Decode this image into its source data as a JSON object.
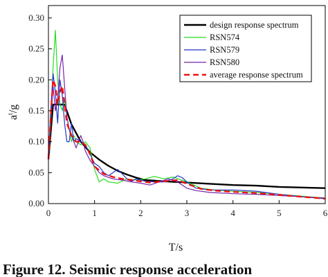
{
  "chart_data": {
    "type": "line",
    "xlabel": "T/s",
    "ylabel": "a / g",
    "ylabel_base": "a",
    "ylabel_sup": "t",
    "ylabel_tail": "/g",
    "xlim": [
      0,
      6
    ],
    "ylim": [
      0,
      0.32
    ],
    "xticks": [
      0,
      1,
      2,
      3,
      4,
      5,
      6
    ],
    "yticks": [
      0.0,
      0.05,
      0.1,
      0.15,
      0.2,
      0.25,
      0.3
    ],
    "ytick_labels": [
      "0.00",
      "0.05",
      "0.10",
      "0.15",
      "0.20",
      "0.25",
      "0.30"
    ],
    "grid": false,
    "legend_position": "top-right",
    "series": [
      {
        "name": "design response spectrum",
        "color": "#000000",
        "dash": "solid",
        "width": 2.4,
        "x": [
          0,
          0.1,
          0.35,
          0.5,
          0.7,
          0.9,
          1.1,
          1.3,
          1.5,
          1.7,
          1.9,
          2.1,
          2.5,
          3,
          3.5,
          4,
          4.5,
          5,
          5.5,
          6
        ],
        "y": [
          0.072,
          0.16,
          0.16,
          0.128,
          0.1,
          0.083,
          0.071,
          0.061,
          0.053,
          0.047,
          0.042,
          0.038,
          0.036,
          0.034,
          0.032,
          0.03,
          0.029,
          0.027,
          0.026,
          0.025
        ]
      },
      {
        "name": "RSN574",
        "color": "#22dd22",
        "dash": "solid",
        "width": 1.2,
        "x": [
          0,
          0.05,
          0.1,
          0.15,
          0.2,
          0.25,
          0.3,
          0.35,
          0.4,
          0.45,
          0.5,
          0.55,
          0.6,
          0.7,
          0.8,
          0.9,
          1.0,
          1.1,
          1.2,
          1.3,
          1.5,
          1.7,
          1.9,
          2.1,
          2.3,
          2.5,
          2.7,
          3.0,
          3.3,
          3.6,
          4.0,
          4.5,
          5.0,
          5.5,
          6.0
        ],
        "y": [
          0.075,
          0.13,
          0.22,
          0.28,
          0.2,
          0.16,
          0.15,
          0.17,
          0.14,
          0.12,
          0.1,
          0.11,
          0.1,
          0.095,
          0.1,
          0.09,
          0.055,
          0.035,
          0.04,
          0.035,
          0.033,
          0.04,
          0.038,
          0.04,
          0.044,
          0.04,
          0.043,
          0.035,
          0.025,
          0.022,
          0.02,
          0.018,
          0.015,
          0.012,
          0.009
        ]
      },
      {
        "name": "RSN579",
        "color": "#2233cc",
        "dash": "solid",
        "width": 1.2,
        "x": [
          0,
          0.05,
          0.1,
          0.15,
          0.2,
          0.25,
          0.3,
          0.35,
          0.4,
          0.45,
          0.5,
          0.55,
          0.6,
          0.7,
          0.8,
          0.9,
          1.0,
          1.1,
          1.2,
          1.3,
          1.4,
          1.5,
          1.6,
          1.7,
          1.8,
          1.9,
          2.1,
          2.3,
          2.5,
          2.7,
          2.8,
          2.9,
          3.0,
          3.2,
          3.5,
          4.0,
          4.5,
          5.0,
          5.5,
          6.0
        ],
        "y": [
          0.07,
          0.15,
          0.21,
          0.18,
          0.13,
          0.2,
          0.175,
          0.13,
          0.1,
          0.1,
          0.13,
          0.1,
          0.105,
          0.1,
          0.095,
          0.08,
          0.065,
          0.06,
          0.05,
          0.045,
          0.05,
          0.055,
          0.048,
          0.04,
          0.036,
          0.04,
          0.036,
          0.035,
          0.035,
          0.04,
          0.045,
          0.042,
          0.035,
          0.025,
          0.022,
          0.022,
          0.02,
          0.015,
          0.011,
          0.008
        ]
      },
      {
        "name": "RSN580",
        "color": "#7722aa",
        "dash": "solid",
        "width": 1.2,
        "x": [
          0,
          0.05,
          0.1,
          0.15,
          0.2,
          0.25,
          0.3,
          0.35,
          0.4,
          0.45,
          0.5,
          0.55,
          0.6,
          0.65,
          0.7,
          0.75,
          0.8,
          0.9,
          1.0,
          1.1,
          1.2,
          1.4,
          1.6,
          1.8,
          2.0,
          2.2,
          2.4,
          2.6,
          2.8,
          3.0,
          3.2,
          3.5,
          4.0,
          4.5,
          5.0,
          5.5,
          6.0
        ],
        "y": [
          0.075,
          0.14,
          0.19,
          0.15,
          0.17,
          0.22,
          0.24,
          0.19,
          0.14,
          0.12,
          0.11,
          0.1,
          0.09,
          0.1,
          0.11,
          0.1,
          0.085,
          0.07,
          0.06,
          0.05,
          0.045,
          0.04,
          0.038,
          0.035,
          0.033,
          0.03,
          0.035,
          0.04,
          0.035,
          0.025,
          0.021,
          0.018,
          0.016,
          0.015,
          0.013,
          0.011,
          0.009
        ]
      },
      {
        "name": "average response spectrum",
        "color": "#ee1111",
        "dash": "dashed",
        "width": 2.4,
        "x": [
          0,
          0.05,
          0.1,
          0.15,
          0.2,
          0.25,
          0.3,
          0.35,
          0.4,
          0.5,
          0.6,
          0.7,
          0.8,
          0.9,
          1.0,
          1.2,
          1.4,
          1.6,
          1.8,
          2.0,
          2.2,
          2.5,
          2.8,
          3.0,
          3.3,
          3.6,
          4.0,
          4.5,
          5.0,
          5.5,
          6.0
        ],
        "y": [
          0.072,
          0.14,
          0.2,
          0.19,
          0.16,
          0.18,
          0.19,
          0.16,
          0.13,
          0.11,
          0.1,
          0.1,
          0.095,
          0.08,
          0.06,
          0.048,
          0.043,
          0.04,
          0.038,
          0.036,
          0.034,
          0.036,
          0.038,
          0.032,
          0.024,
          0.021,
          0.019,
          0.017,
          0.014,
          0.011,
          0.008
        ]
      }
    ]
  },
  "caption": {
    "text": "Figure 12. Seismic response acceleration"
  }
}
